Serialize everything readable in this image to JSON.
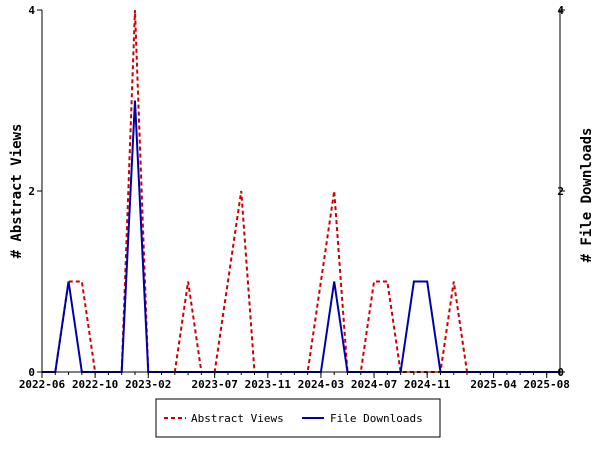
{
  "chart_data": {
    "type": "line",
    "title": "",
    "xlabel": "",
    "ylabel_left": "# Abstract Views",
    "ylabel_right": "# File Downloads",
    "x_ticks": [
      "2022-06",
      "2022-10",
      "2023-02",
      "2023-07",
      "2023-11",
      "2024-03",
      "2024-07",
      "2024-11",
      "2025-04",
      "2025-08"
    ],
    "x_tick_months": [
      0,
      4,
      8,
      13,
      17,
      21,
      25,
      29,
      34,
      38
    ],
    "x_range_months": [
      0,
      39
    ],
    "ylim_left": [
      0,
      4
    ],
    "ylim_right": [
      0,
      4
    ],
    "y_ticks_left": [
      "0",
      "2",
      "4"
    ],
    "y_ticks_right": [
      "0",
      "2",
      "4"
    ],
    "grid": false,
    "legend_placement": "bottom-center",
    "series": [
      {
        "name": "Abstract Views",
        "color": "#cc0000",
        "dash": true,
        "axis": "left",
        "x": [
          0,
          1,
          2,
          3,
          4,
          5,
          6,
          7,
          8,
          9,
          10,
          11,
          12,
          13,
          14,
          15,
          16,
          17,
          18,
          19,
          20,
          21,
          22,
          23,
          24,
          25,
          26,
          27,
          28,
          29,
          30,
          31,
          32,
          33,
          34,
          35,
          36,
          37,
          38,
          39
        ],
        "values": [
          0,
          0,
          1,
          1,
          0,
          0,
          0,
          4,
          0,
          0,
          0,
          1,
          0,
          0,
          1,
          2,
          0,
          0,
          0,
          0,
          0,
          1,
          2,
          0,
          0,
          1,
          1,
          0,
          0,
          0,
          0,
          1,
          0,
          0,
          0,
          0,
          0,
          0,
          0,
          0
        ]
      },
      {
        "name": "File Downloads",
        "color": "#0000aa",
        "dash": false,
        "axis": "right",
        "x": [
          0,
          1,
          2,
          3,
          4,
          5,
          6,
          7,
          8,
          9,
          10,
          11,
          12,
          13,
          14,
          15,
          16,
          17,
          18,
          19,
          20,
          21,
          22,
          23,
          24,
          25,
          26,
          27,
          28,
          29,
          30,
          31,
          32,
          33,
          34,
          35,
          36,
          37,
          38,
          39
        ],
        "values": [
          0,
          0,
          1,
          0,
          0,
          0,
          0,
          3,
          0,
          0,
          0,
          0,
          0,
          0,
          0,
          0,
          0,
          0,
          0,
          0,
          0,
          0,
          1,
          0,
          0,
          0,
          0,
          0,
          1,
          1,
          0,
          0,
          0,
          0,
          0,
          0,
          0,
          0,
          0,
          0
        ]
      }
    ]
  }
}
